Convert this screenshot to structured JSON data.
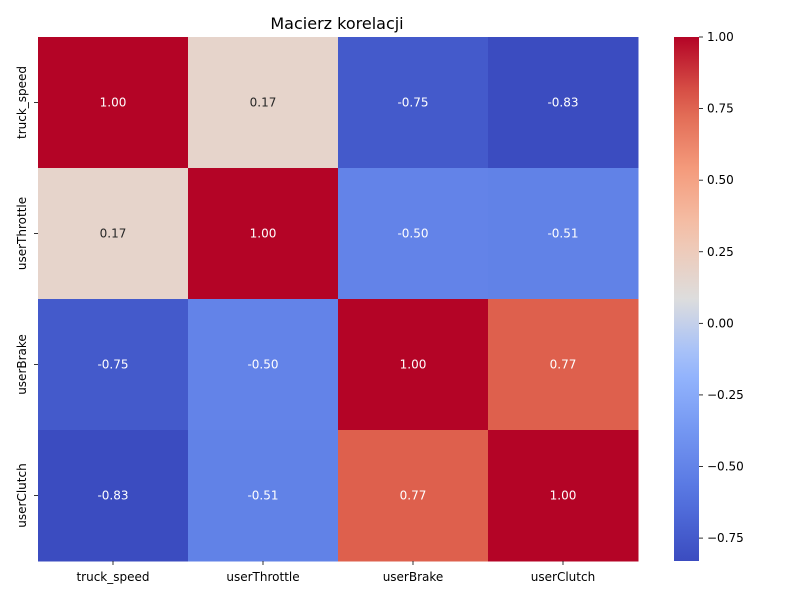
{
  "chart_data": {
    "type": "heatmap",
    "title": "Macierz korelacji",
    "x_categories": [
      "truck_speed",
      "userThrottle",
      "userBrake",
      "userClutch"
    ],
    "y_categories": [
      "truck_speed",
      "userThrottle",
      "userBrake",
      "userClutch"
    ],
    "values": [
      [
        1.0,
        0.17,
        -0.75,
        -0.83
      ],
      [
        0.17,
        1.0,
        -0.5,
        -0.51
      ],
      [
        -0.75,
        -0.5,
        1.0,
        0.77
      ],
      [
        -0.83,
        -0.51,
        0.77,
        1.0
      ]
    ],
    "cell_labels": [
      [
        "1.00",
        "0.17",
        "-0.75",
        "-0.83"
      ],
      [
        "0.17",
        "1.00",
        "-0.50",
        "-0.51"
      ],
      [
        "-0.75",
        "-0.50",
        "1.00",
        "0.77"
      ],
      [
        "-0.83",
        "-0.51",
        "0.77",
        "1.00"
      ]
    ],
    "colorscale": "coolwarm",
    "color_range": [
      -0.83,
      1.0
    ],
    "colorbar_ticks": [
      1.0,
      0.75,
      0.5,
      0.25,
      0.0,
      -0.25,
      -0.5,
      -0.75
    ],
    "colorbar_tick_labels": [
      "1.00",
      "0.75",
      "0.50",
      "0.25",
      "0.00",
      "−0.25",
      "−0.50",
      "−0.75"
    ],
    "colorbar_position": "right",
    "grid": false
  }
}
